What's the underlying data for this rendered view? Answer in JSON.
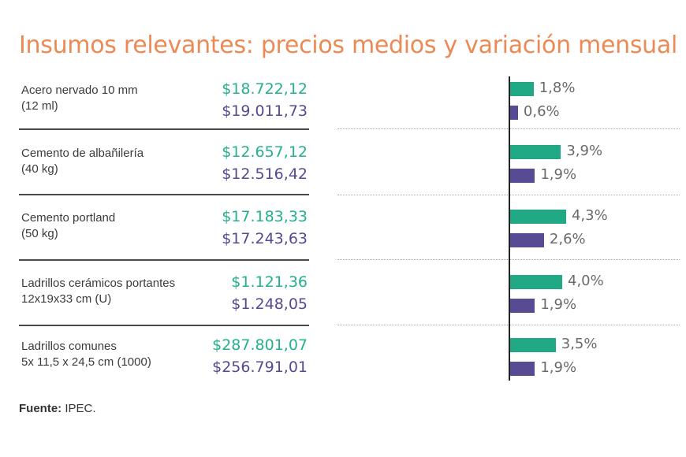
{
  "title": "Insumos relevantes: precios medios y variación mensual",
  "source": {
    "label": "Fuente:",
    "value": "IPEC."
  },
  "colors": {
    "title": "#ec8a55",
    "series1": "#21a985",
    "series2": "#584b94"
  },
  "items": [
    {
      "name_line1": "Acero nervado 10 mm",
      "name_line2": "(12 ml)",
      "price1": "$18.722,12",
      "price2": "$19.011,73",
      "var1_label": "1,8%",
      "var2_label": "0,6%"
    },
    {
      "name_line1": "Cemento de albañilería",
      "name_line2": "(40 kg)",
      "price1": "$12.657,12",
      "price2": "$12.516,42",
      "var1_label": "3,9%",
      "var2_label": "1,9%"
    },
    {
      "name_line1": "Cemento portland",
      "name_line2": "(50 kg)",
      "price1": "$17.183,33",
      "price2": "$17.243,63",
      "var1_label": "4,3%",
      "var2_label": "2,6%"
    },
    {
      "name_line1": "Ladrillos cerámicos portantes",
      "name_line2": "12x19x33 cm (U)",
      "price1": "$1.121,36",
      "price2": "$1.248,05",
      "var1_label": "4,0%",
      "var2_label": "1,9%"
    },
    {
      "name_line1": "Ladrillos comunes",
      "name_line2": "5x 11,5 x 24,5 cm (1000)",
      "price1": "$287.801,07",
      "price2": "$256.791,01",
      "var1_label": "3,5%",
      "var2_label": "1,9%"
    }
  ],
  "chart_data": {
    "type": "bar",
    "orientation": "horizontal",
    "categories": [
      "Acero nervado 10 mm (12 ml)",
      "Cemento de albañilería (40 kg)",
      "Cemento portland (50 kg)",
      "Ladrillos cerámicos portantes 12x19x33 cm (U)",
      "Ladrillos comunes 5x 11,5 x 24,5 cm (1000)"
    ],
    "series": [
      {
        "values": [
          1.8,
          3.9,
          4.3,
          4.0,
          3.5
        ]
      },
      {
        "values": [
          0.6,
          1.9,
          2.6,
          1.9,
          1.9
        ]
      }
    ],
    "title": "Insumos relevantes: precios medios y variación mensual",
    "xlabel": "",
    "ylabel": "",
    "xlim": [
      0,
      5
    ],
    "grid": false,
    "legend": "none"
  }
}
